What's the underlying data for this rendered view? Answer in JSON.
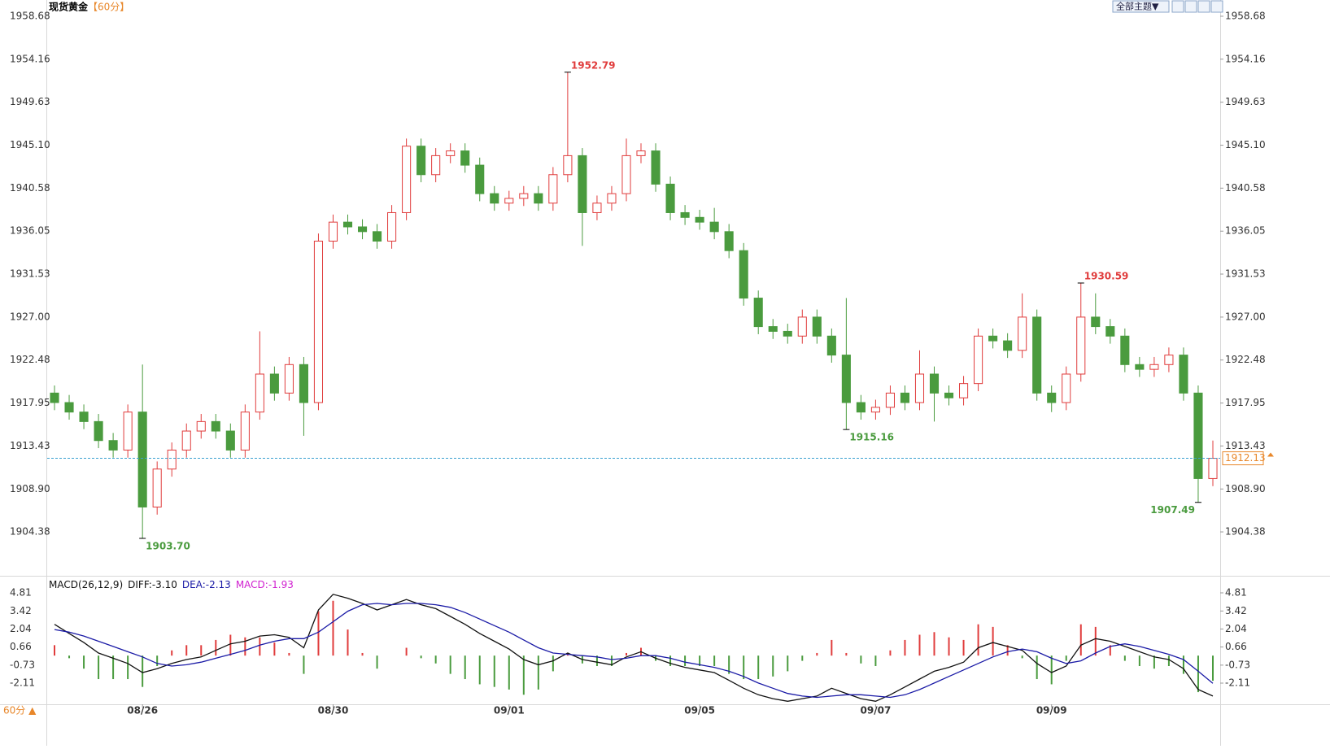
{
  "header": {
    "title": "现货黄金",
    "period": "【60分】",
    "theme_button": "全部主题▼",
    "footer_period": "60分 ▲"
  },
  "chart_data": [
    {
      "type": "candlestick",
      "categories": [
        null,
        null,
        null,
        null,
        null,
        null,
        "08/26",
        null,
        null,
        null,
        null,
        null,
        null,
        null,
        null,
        null,
        null,
        null,
        null,
        "08/30",
        null,
        null,
        null,
        null,
        null,
        null,
        null,
        null,
        null,
        null,
        null,
        "09/01",
        null,
        null,
        null,
        null,
        null,
        null,
        null,
        null,
        null,
        null,
        null,
        null,
        "09/05",
        null,
        null,
        null,
        null,
        null,
        null,
        null,
        null,
        null,
        null,
        null,
        "09/07",
        null,
        null,
        null,
        null,
        null,
        null,
        null,
        null,
        null,
        null,
        null,
        "09/09",
        null,
        null,
        null,
        null,
        null,
        null,
        null,
        null,
        null,
        null,
        null
      ],
      "open": [
        1919,
        1918,
        1917,
        1916,
        1914,
        1913,
        1917,
        1907,
        1911,
        1913,
        1915,
        1916,
        1915,
        1913,
        1917,
        1921,
        1919,
        1922,
        1918,
        1935,
        1937,
        1936.5,
        1936,
        1935,
        1938,
        1945,
        1942,
        1944,
        1944.5,
        1943,
        1940,
        1939,
        1939.5,
        1940,
        1939,
        1942,
        1944,
        1938,
        1939,
        1940,
        1944,
        1944.5,
        1941,
        1938,
        1937.5,
        1937,
        1936,
        1934,
        1929,
        1926,
        1925.5,
        1925,
        1927,
        1925,
        1923,
        1918,
        1917,
        1917.5,
        1919,
        1918,
        1921,
        1919,
        1918.5,
        1920,
        1925,
        1924.5,
        1923.5,
        1927,
        1919,
        1918,
        1921,
        1927,
        1926,
        1925,
        1922,
        1921.5,
        1922,
        1923,
        1919,
        1910
      ],
      "high": [
        1919.8,
        1918.8,
        1917.8,
        1916.8,
        1914.8,
        1917.8,
        1922,
        1911.8,
        1913.8,
        1915.8,
        1916.8,
        1916.8,
        1915.8,
        1917.8,
        1925.5,
        1921.8,
        1922.8,
        1922.8,
        1935.8,
        1937.8,
        1937.8,
        1937.3,
        1936.8,
        1938.8,
        1945.8,
        1945.8,
        1944.8,
        1945.3,
        1945.3,
        1943.8,
        1940.8,
        1940.3,
        1940.8,
        1940.8,
        1942.8,
        1952.79,
        1944.8,
        1939.8,
        1940.8,
        1945.8,
        1945.3,
        1945.3,
        1941.8,
        1938.8,
        1938.3,
        1938.5,
        1936.8,
        1934.8,
        1929.8,
        1926.8,
        1926.3,
        1927.8,
        1927.8,
        1925.8,
        1929,
        1918.8,
        1918.3,
        1919.8,
        1919.8,
        1923.5,
        1921.8,
        1919.8,
        1920.8,
        1925.8,
        1925.8,
        1925.3,
        1929.5,
        1927.8,
        1919.8,
        1921.8,
        1930.59,
        1929.5,
        1926.8,
        1925.8,
        1922.8,
        1922.8,
        1923.8,
        1923.8,
        1919.8,
        1914
      ],
      "low": [
        1917.2,
        1916.2,
        1915.2,
        1913.2,
        1912.2,
        1912.2,
        1903.7,
        1906.2,
        1910.2,
        1912.2,
        1914.2,
        1914.2,
        1912.2,
        1912.2,
        1916.2,
        1918.2,
        1918.2,
        1914.5,
        1917.2,
        1934.2,
        1935.7,
        1935.2,
        1934.2,
        1934.2,
        1937.2,
        1941.2,
        1941.2,
        1943.2,
        1942.2,
        1939.2,
        1938.2,
        1938.2,
        1938.7,
        1938.2,
        1938.2,
        1941.2,
        1934.5,
        1937.2,
        1938.2,
        1939.2,
        1943.2,
        1940.2,
        1937.2,
        1936.7,
        1936.2,
        1935.2,
        1933.2,
        1928.2,
        1925.2,
        1924.7,
        1924.2,
        1924.2,
        1924.2,
        1922.2,
        1915.16,
        1916.2,
        1916.2,
        1916.7,
        1917.2,
        1917.2,
        1916,
        1917.7,
        1917.7,
        1919.2,
        1923.7,
        1922.7,
        1922.7,
        1918.2,
        1917,
        1917.2,
        1920.2,
        1925.2,
        1924.2,
        1921.2,
        1920.7,
        1920.7,
        1921.2,
        1918.2,
        1907.49,
        1909.2
      ],
      "close": [
        1918,
        1917,
        1916,
        1914,
        1913,
        1917,
        1907,
        1911,
        1913,
        1915,
        1916,
        1915,
        1913,
        1917,
        1921,
        1919,
        1922,
        1918,
        1935,
        1937,
        1936.5,
        1936,
        1935,
        1938,
        1945,
        1942,
        1944,
        1944.5,
        1943,
        1940,
        1939,
        1939.5,
        1940,
        1939,
        1942,
        1944,
        1938,
        1939,
        1940,
        1944,
        1944.5,
        1941,
        1938,
        1937.5,
        1937,
        1936,
        1934,
        1929,
        1926,
        1925.5,
        1925,
        1927,
        1925,
        1923,
        1918,
        1917,
        1917.5,
        1919,
        1918,
        1921,
        1919,
        1918.5,
        1920,
        1925,
        1924.5,
        1923.5,
        1927,
        1919,
        1918,
        1921,
        1927,
        1926,
        1925,
        1922,
        1921.5,
        1922,
        1923,
        1919,
        1910,
        1912.13
      ],
      "up_color": "#e03c3c",
      "down_color": "#4a9b3e",
      "ylim": [
        1899.76,
        1960.22
      ],
      "yticks": [
        1958.68,
        1954.16,
        1949.63,
        {
          "value": 1945.1,
          "label": "1945.10"
        },
        1940.58,
        1936.05,
        1931.53,
        {
          "value": 1927,
          "label": "1927.00"
        },
        1922.48,
        1917.95,
        1913.43,
        {
          "value": 1908.9,
          "label": "1908.90"
        },
        1904.38
      ],
      "extremes": [
        {
          "value": 1903.7,
          "label": "1903.70"
        },
        1952.79,
        1915.16,
        1930.59,
        1907.49
      ],
      "last_price": 1912.13
    },
    {
      "type": "macd",
      "title": "MACD(26,12,9)",
      "ylim": [
        -3.73,
        5.87
      ],
      "yticks": [
        4.81,
        3.42,
        2.04,
        0.66,
        -0.73,
        -2.11
      ],
      "series": [
        {
          "name": "DIFF:-3.10",
          "color": "#111111",
          "kind": "line",
          "values": [
            2.4,
            1.7,
            1.0,
            0.2,
            -0.2,
            -0.6,
            -1.3,
            -1.0,
            -0.6,
            -0.3,
            -0.1,
            0.4,
            0.9,
            1.1,
            1.5,
            1.6,
            1.4,
            0.6,
            3.5,
            4.7,
            4.4,
            4.0,
            3.5,
            3.9,
            4.3,
            3.9,
            3.6,
            3.0,
            2.4,
            1.7,
            1.1,
            0.5,
            -0.3,
            -0.7,
            -0.4,
            0.2,
            -0.3,
            -0.5,
            -0.7,
            -0.1,
            0.3,
            -0.2,
            -0.6,
            -0.9,
            -1.1,
            -1.3,
            -1.9,
            -2.5,
            -3.0,
            -3.3,
            -3.5,
            -3.3,
            -3.1,
            -2.5,
            -2.9,
            -3.3,
            -3.5,
            -3.0,
            -2.4,
            -1.8,
            -1.2,
            -0.9,
            -0.5,
            0.6,
            1.0,
            0.7,
            0.4,
            -0.6,
            -1.3,
            -0.8,
            0.8,
            1.3,
            1.1,
            0.7,
            0.3,
            -0.1,
            -0.3,
            -1.0,
            -2.6,
            -3.1
          ]
        },
        {
          "name": "DEA:-2.13",
          "color": "#1a1aa6",
          "kind": "line",
          "values": [
            2.0,
            1.8,
            1.5,
            1.1,
            0.7,
            0.3,
            -0.1,
            -0.6,
            -0.8,
            -0.7,
            -0.5,
            -0.2,
            0.1,
            0.4,
            0.8,
            1.1,
            1.3,
            1.3,
            1.8,
            2.6,
            3.4,
            3.9,
            4.0,
            3.9,
            4.0,
            4.0,
            3.9,
            3.7,
            3.3,
            2.8,
            2.3,
            1.8,
            1.2,
            0.6,
            0.2,
            0.1,
            0.0,
            -0.1,
            -0.3,
            -0.2,
            0.0,
            0.0,
            -0.2,
            -0.5,
            -0.7,
            -0.9,
            -1.2,
            -1.6,
            -2.1,
            -2.5,
            -2.9,
            -3.1,
            -3.2,
            -3.1,
            -3.0,
            -3.0,
            -3.1,
            -3.2,
            -3.0,
            -2.6,
            -2.1,
            -1.6,
            -1.1,
            -0.6,
            -0.1,
            0.3,
            0.5,
            0.3,
            -0.2,
            -0.6,
            -0.4,
            0.2,
            0.7,
            0.9,
            0.7,
            0.4,
            0.1,
            -0.3,
            -1.2,
            -2.13
          ]
        },
        {
          "name": "MACD:-1.93",
          "color": "#d020d0",
          "kind": "hist",
          "up_color": "#e03c3c",
          "down_color": "#4a9b3e",
          "values": [
            0.8,
            -0.2,
            -1.0,
            -1.8,
            -1.8,
            -1.8,
            -2.4,
            -0.8,
            0.4,
            0.8,
            0.8,
            1.2,
            1.6,
            1.4,
            1.4,
            1.0,
            0.2,
            -1.4,
            3.4,
            4.2,
            2.0,
            0.2,
            -1.0,
            0.0,
            0.6,
            -0.2,
            -0.6,
            -1.4,
            -1.8,
            -2.2,
            -2.4,
            -2.6,
            -3.0,
            -2.6,
            -1.2,
            0.2,
            -0.6,
            -0.8,
            -0.8,
            0.2,
            0.6,
            -0.4,
            -0.8,
            -0.8,
            -0.8,
            -0.8,
            -1.4,
            -1.8,
            -1.8,
            -1.6,
            -1.2,
            -0.4,
            0.2,
            1.2,
            0.2,
            -0.6,
            -0.8,
            0.4,
            1.2,
            1.6,
            1.8,
            1.4,
            1.2,
            2.4,
            2.2,
            0.8,
            -0.2,
            -1.8,
            -2.2,
            -0.4,
            2.4,
            2.2,
            0.8,
            -0.4,
            -0.8,
            -1.0,
            -0.8,
            -1.4,
            -2.8,
            -1.93
          ]
        }
      ]
    }
  ]
}
